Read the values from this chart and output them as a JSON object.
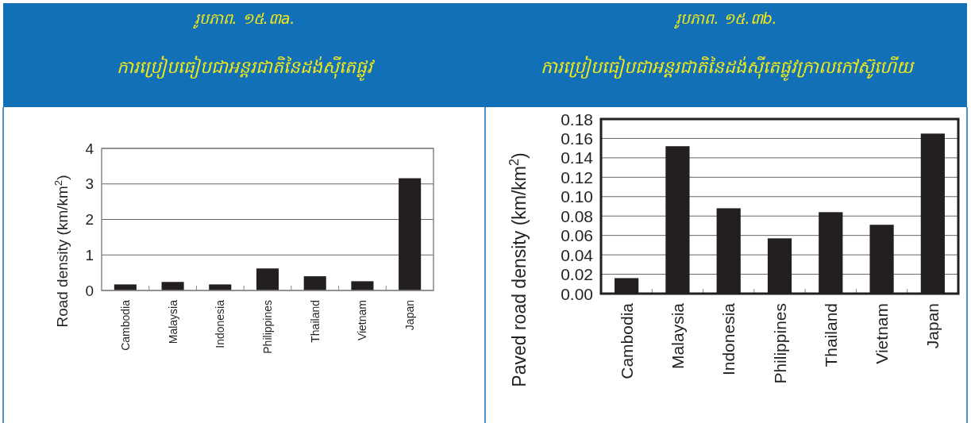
{
  "chart_data": [
    {
      "type": "bar",
      "title": "រូបភាព. ១៥.៣a.",
      "subtitle": "ការប្រៀបធៀបជាអន្តរជាតិនៃដង់ស៊ីតេផ្លូវ",
      "ylabel": "Road density (km/km$^{2}$)",
      "categories": [
        "Cambodia",
        "Malaysia",
        "Indonesia",
        "Philippines",
        "Thailand",
        "Vietnam",
        "Japan"
      ],
      "values": [
        0.17,
        0.24,
        0.17,
        0.62,
        0.4,
        0.26,
        3.16
      ],
      "color": "#231f20",
      "ylim": [
        0,
        4
      ],
      "yticks": [
        0,
        1,
        2,
        3,
        4
      ],
      "grid": "y"
    },
    {
      "type": "bar",
      "title": "រូបភាព. ១៥.៣b.",
      "subtitle": "ការប្រៀបធៀបជាអន្តរជាតិនៃដង់ស៊ីតេផ្លូវក្រាលកៅស៊ូហើយ",
      "ylabel": "Paved road density (km/km$^{2}$)",
      "categories": [
        "Cambodia",
        "Malaysia",
        "Indonesia",
        "Philippines",
        "Thailand",
        "Vietnam",
        "Japan"
      ],
      "values": [
        0.016,
        0.152,
        0.088,
        0.057,
        0.084,
        0.071,
        0.165
      ],
      "color": "#231f20",
      "ylim": [
        0,
        0.18
      ],
      "yticks": [
        {
          "value": 0,
          "label": "0.00"
        },
        0.02,
        0.04,
        0.06,
        0.08,
        {
          "value": 0.1,
          "label": "0.10"
        },
        0.12,
        0.14,
        0.16,
        0.18
      ],
      "grid": "y"
    }
  ]
}
